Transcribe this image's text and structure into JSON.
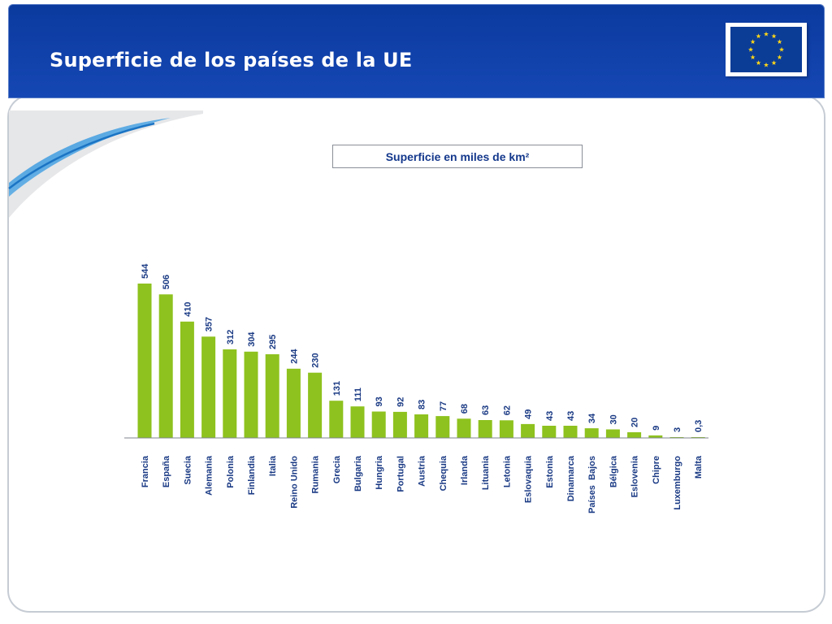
{
  "slide": {
    "title": "Superficie de los países de la UE",
    "logo": "eu-flag-icon",
    "colors": {
      "header": "#1547b4",
      "bar": "#8ec21e",
      "subtitle_text": "#14388c",
      "label_text": "#1a3a84"
    }
  },
  "chart_data": {
    "type": "bar",
    "title": "Superficie en miles de km²",
    "xlabel": "",
    "ylabel": "",
    "categories": [
      "Francia",
      "España",
      "Suecia",
      "Alemania",
      "Polonia",
      "Finlandia",
      "Italia",
      "Reino Unido",
      "Rumania",
      "Grecia",
      "Bulgaria",
      "Hungria",
      "Portugal",
      "Austria",
      "Chequia",
      "Irlanda",
      "Lituania",
      "Letonia",
      "Eslovaquia",
      "Estonia",
      "Dinamarca",
      "Países  Bajos",
      "Bélgica",
      "Eslovenia",
      "Chipre",
      "Luxemburgo",
      "Malta"
    ],
    "values": [
      544,
      506,
      410,
      357,
      312,
      304,
      295,
      244,
      230,
      131,
      111,
      93,
      92,
      83,
      77,
      68,
      63,
      62,
      49,
      43,
      43,
      34,
      30,
      20,
      9,
      3,
      0.3
    ],
    "value_labels": [
      "544",
      "506",
      "410",
      "357",
      "312",
      "304",
      "295",
      "244",
      "230",
      "131",
      "111",
      "93",
      "92",
      "83",
      "77",
      "68",
      "63",
      "62",
      "49",
      "43",
      "43",
      "34",
      "30",
      "20",
      "9",
      "3",
      "0,3"
    ],
    "ylim": [
      0,
      544
    ],
    "grid": false,
    "legend": "none",
    "bar_color": "#8ec21e"
  }
}
